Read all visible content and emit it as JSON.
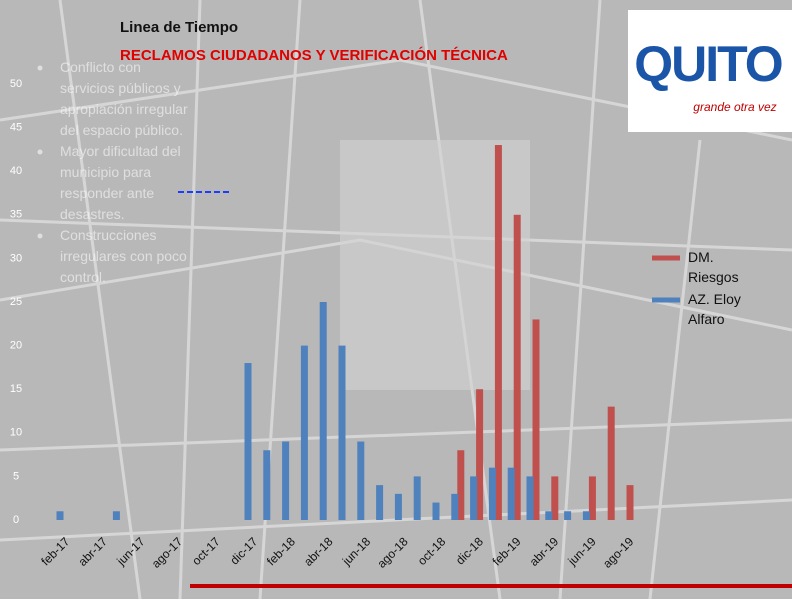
{
  "chart_data": {
    "type": "bar",
    "title": "Linea de Tiempo",
    "subtitle": "RECLAMOS CIUDADANOS Y VERIFICACIÓN TÉCNICA",
    "notes": [
      "Conflicto con servicios públicos y apropiación irregular del espacio público.",
      "Mayor dificultad del municipio para responder ante desastres.",
      "Construcciones irregulares con poco control."
    ],
    "logo": {
      "text": "QUITO",
      "tagline": "grande otra vez"
    },
    "categories": [
      "feb-17",
      null,
      "abr-17",
      null,
      "jun-17",
      null,
      "ago-17",
      null,
      "oct-17",
      null,
      "dic-17",
      null,
      "feb-18",
      null,
      "abr-18",
      null,
      "jun-18",
      null,
      "ago-18",
      null,
      "oct-18",
      null,
      "dic-18",
      null,
      "feb-19",
      null,
      "abr-19",
      null,
      "jun-19",
      null,
      "ago-19"
    ],
    "series": [
      {
        "name": "DM. Riesgos",
        "color": "#c0504d",
        "values": [
          null,
          null,
          null,
          null,
          null,
          null,
          null,
          null,
          null,
          null,
          null,
          null,
          null,
          null,
          null,
          null,
          null,
          null,
          null,
          null,
          null,
          8,
          15,
          43,
          35,
          23,
          5,
          null,
          5,
          13,
          4
        ]
      },
      {
        "name": "AZ. Eloy Alfaro",
        "color": "#4f81bd",
        "values": [
          1,
          null,
          null,
          1,
          null,
          null,
          null,
          null,
          null,
          null,
          18,
          8,
          9,
          20,
          25,
          20,
          9,
          4,
          3,
          5,
          2,
          3,
          5,
          6,
          6,
          5,
          1,
          1,
          1,
          null,
          null
        ]
      }
    ],
    "ylim": [
      0,
      50
    ],
    "yticks": [
      0,
      5,
      10,
      15,
      20,
      25,
      30,
      35,
      40,
      45,
      50
    ],
    "legend": "right"
  }
}
